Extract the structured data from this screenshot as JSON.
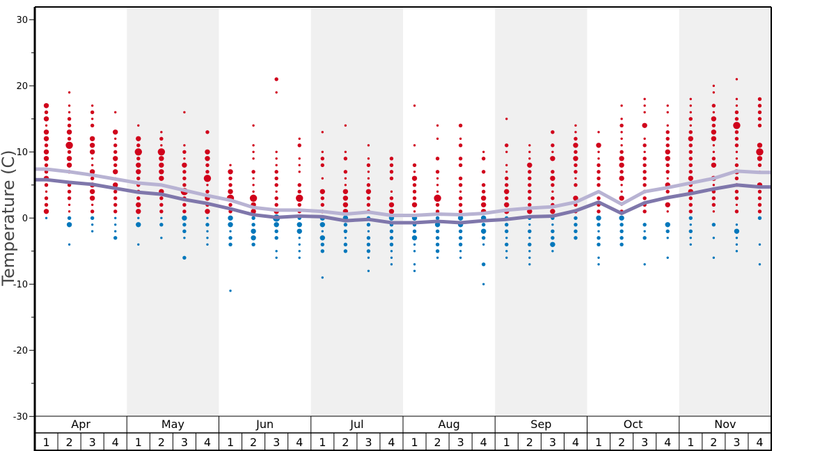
{
  "chart_data": {
    "type": "scatter",
    "title": "",
    "xlabel": "",
    "ylabel": "Temperature (C)",
    "ylim": [
      -30,
      30
    ],
    "yticks": [
      "30",
      "20",
      "10",
      "0",
      "-10",
      "-20",
      "-30"
    ],
    "ytick_values": [
      30,
      20,
      10,
      0,
      -10,
      -20,
      -30
    ],
    "minor_ytick_values": [
      25,
      15,
      5,
      -5,
      -15,
      -25
    ],
    "months": [
      "Apr",
      "May",
      "Jun",
      "Jul",
      "Aug",
      "Sep",
      "Oct",
      "Nov"
    ],
    "week_labels": [
      "1",
      "2",
      "3",
      "4"
    ],
    "shaded_months": [
      "May",
      "Jul",
      "Sep",
      "Nov"
    ],
    "colors": {
      "above_zero": "#d0021b",
      "at_or_below_zero": "#0077bb",
      "upper_line": "#b8b3d3",
      "lower_line": "#7f77ab",
      "shade": "#f0f0f0"
    },
    "dots": [
      {
        "month": "Apr",
        "week": 1,
        "top": 17,
        "sizes": "323133233223212231"
      },
      {
        "month": "Apr",
        "week": 2,
        "top": 19,
        "sizes": "101122324233202221123001"
      },
      {
        "month": "Apr",
        "week": 3,
        "top": 17,
        "sizes": "12120333113233312211"
      },
      {
        "month": "Apr",
        "week": 4,
        "top": 16,
        "sizes": "10031223231322221112"
      },
      {
        "month": "May",
        "week": 1,
        "top": 14,
        "sizes": "1032423322223313001"
      },
      {
        "month": "May",
        "week": 2,
        "top": 13,
        "sizes": "12143333132221201"
      },
      {
        "month": "May",
        "week": 3,
        "top": 16,
        "sizes": "10000121322242223221002"
      },
      {
        "month": "May",
        "week": 4,
        "top": 13,
        "sizes": "200332241232312111"
      },
      {
        "month": "Jun",
        "week": 1,
        "top": 8,
        "sizes": "13223422331220000001"
      },
      {
        "month": "Jun",
        "week": 2,
        "top": 14,
        "sizes": "1001110211143322332"
      },
      {
        "month": "Jun",
        "week": 3,
        "top": 21,
        "sizes": "2010000000011122212234322011"
      },
      {
        "month": "Jun",
        "week": 4,
        "top": 12,
        "sizes": "1201110224222331111"
      },
      {
        "month": "Jul",
        "week": 1,
        "top": 13,
        "sizes": "10012201032223313220001"
      },
      {
        "month": "Jul",
        "week": 2,
        "top": 14,
        "sizes": "10001202113333322122"
      },
      {
        "month": "Jul",
        "week": 3,
        "top": 11,
        "sizes": "10121123222221222101"
      },
      {
        "month": "Jul",
        "week": 4,
        "top": 9,
        "sizes": "22220123332222111"
      },
      {
        "month": "Aug",
        "week": 1,
        "top": 17,
        "sizes": "10000010021322231322311011"
      },
      {
        "month": "Aug",
        "week": 2,
        "top": 14,
        "sizes": "101002021114222322221"
      },
      {
        "month": "Aug",
        "week": 3,
        "top": 14,
        "sizes": "201202202212223322211"
      },
      {
        "month": "Aug",
        "week": 4,
        "top": 10,
        "sizes": "120202233332321002001"
      },
      {
        "month": "Sep",
        "week": 1,
        "top": 15,
        "sizes": "1000210112232332221211"
      },
      {
        "month": "Sep",
        "week": 2,
        "top": 11,
        "sizes": "1113222222321212111"
      },
      {
        "month": "Sep",
        "week": 3,
        "top": 13,
        "sizes": "2021302321223212231"
      },
      {
        "month": "Sep",
        "week": 4,
        "top": 14,
        "sizes": "112323221203222222"
      },
      {
        "month": "Oct",
        "week": 1,
        "top": 13,
        "sizes": "103112222122232122011"
      },
      {
        "month": "Oct",
        "week": 2,
        "top": 17,
        "sizes": "1012111233231131232222"
      },
      {
        "month": "Oct",
        "week": 3,
        "top": 18,
        "sizes": "11103012122222222202120001"
      },
      {
        "month": "Oct",
        "week": 4,
        "top": 17,
        "sizes": "110122233221321310321001"
      },
      {
        "month": "Nov",
        "week": 1,
        "top": 18,
        "sizes": "11121232222232322221211"
      },
      {
        "month": "Nov",
        "week": 2,
        "top": 20,
        "sizes": "110213233112303122210201001"
      },
      {
        "month": "Nov",
        "week": 3,
        "top": 21,
        "sizes": "100112242221123222212013111"
      },
      {
        "month": "Nov",
        "week": 4,
        "top": 18,
        "sizes": "22222003432103222220001001"
      }
    ],
    "series": [
      {
        "name": "upper",
        "values": [
          7.4,
          7.0,
          6.5,
          5.9,
          5.3,
          5.0,
          4.2,
          3.4,
          2.7,
          1.6,
          1.2,
          1.2,
          1.0,
          0.6,
          0.9,
          0.4,
          0.4,
          0.6,
          0.5,
          0.7,
          1.2,
          1.5,
          1.7,
          2.4,
          4.0,
          2.1,
          4.0,
          4.6,
          5.3,
          6.0,
          7.1,
          6.9
        ]
      },
      {
        "name": "lower",
        "values": [
          5.8,
          5.4,
          5.1,
          4.5,
          3.9,
          3.6,
          2.8,
          2.2,
          1.4,
          0.5,
          0.1,
          0.3,
          0.2,
          -0.4,
          -0.2,
          -0.7,
          -0.7,
          -0.5,
          -0.7,
          -0.4,
          -0.2,
          0.2,
          0.3,
          1.1,
          2.4,
          0.7,
          2.3,
          3.1,
          3.7,
          4.4,
          5.0,
          4.7
        ]
      }
    ]
  }
}
